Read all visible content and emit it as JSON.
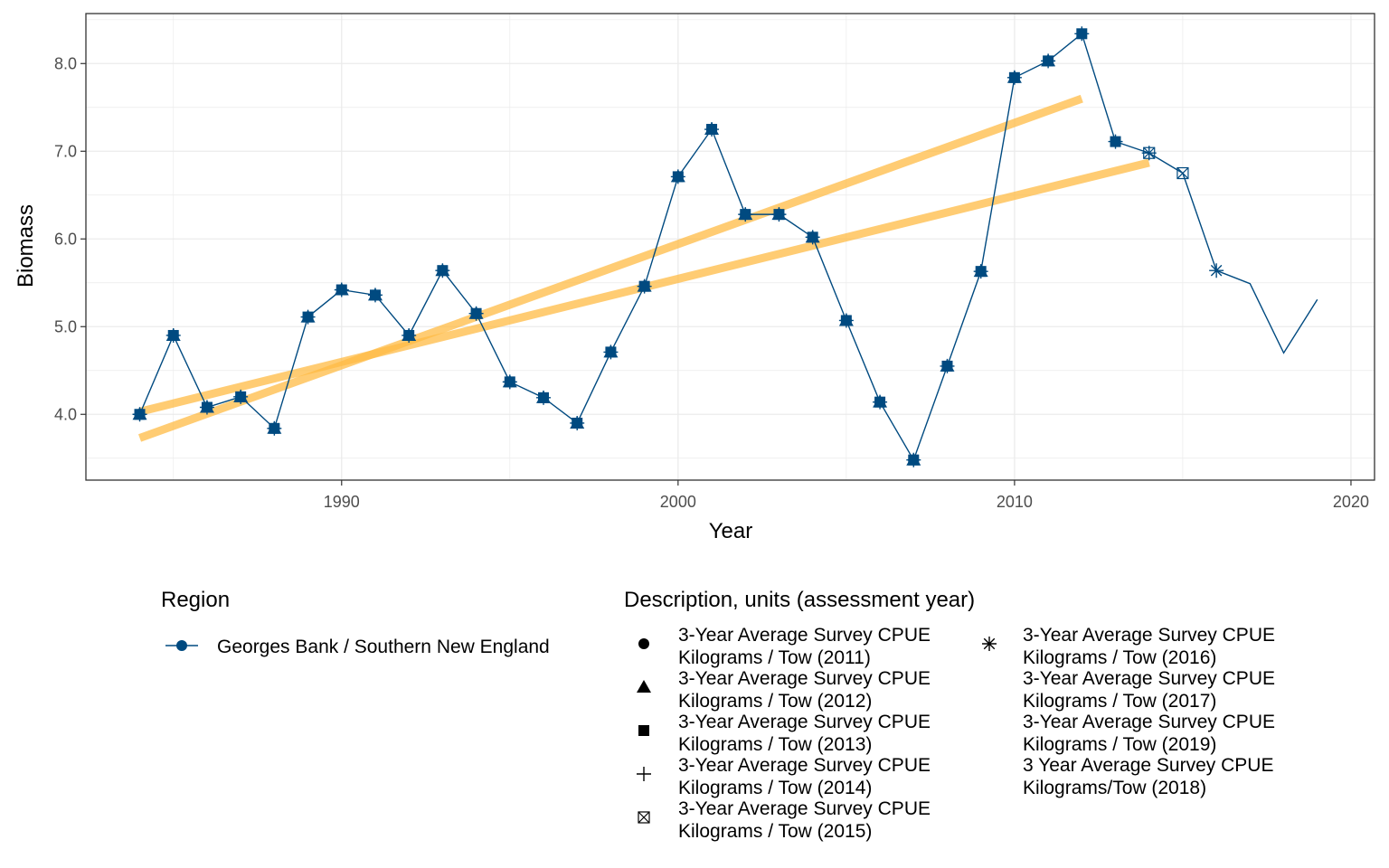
{
  "chart_data": {
    "type": "line",
    "xlabel": "Year",
    "ylabel": "Biomass",
    "xlim": [
      1982.4,
      2020.7
    ],
    "ylim": [
      3.25,
      8.57
    ],
    "x_ticks": [
      1990,
      2000,
      2010,
      2020
    ],
    "x_tick_labels": [
      "1990",
      "2000",
      "2010",
      "2020"
    ],
    "y_ticks": [
      4,
      5,
      6,
      7,
      8
    ],
    "y_tick_labels": [
      "4.0",
      "5.0",
      "6.0",
      "7.0",
      "8.0"
    ],
    "grid": true,
    "legend_placement": "bottom",
    "series": [
      {
        "name": "Georges Bank / Southern New England",
        "color": "#004a80",
        "x": [
          1984,
          1985,
          1986,
          1987,
          1988,
          1989,
          1990,
          1991,
          1992,
          1993,
          1994,
          1995,
          1996,
          1997,
          1998,
          1999,
          2000,
          2001,
          2002,
          2003,
          2004,
          2005,
          2006,
          2007,
          2008,
          2009,
          2010,
          2011,
          2012,
          2013,
          2014,
          2015,
          2016,
          2017,
          2018,
          2019
        ],
        "y": [
          4.0,
          4.9,
          4.08,
          4.2,
          3.84,
          5.11,
          5.42,
          5.36,
          4.9,
          5.64,
          5.15,
          4.37,
          4.19,
          3.9,
          4.71,
          5.46,
          6.71,
          7.25,
          6.28,
          6.28,
          6.02,
          5.07,
          4.14,
          3.48,
          4.55,
          5.63,
          7.84,
          8.03,
          8.34,
          7.11,
          6.98,
          6.75,
          5.64,
          5.49,
          4.7,
          5.31
        ]
      }
    ],
    "trend_lines": [
      {
        "color": "#ffbb44",
        "x": [
          1984,
          2012
        ],
        "y": [
          3.73,
          7.6
        ]
      },
      {
        "color": "#ffbb44",
        "x": [
          1984,
          2014
        ],
        "y": [
          4.03,
          6.87
        ]
      }
    ],
    "assessment_markers": [
      {
        "shape": "circle",
        "x": [
          1984,
          1985,
          1986,
          1987,
          1988,
          1989,
          1990,
          1991,
          1992,
          1993,
          1994,
          1995,
          1996,
          1997,
          1998,
          1999,
          2000,
          2001,
          2002,
          2003,
          2004,
          2005,
          2006,
          2007,
          2008,
          2009,
          2010
        ],
        "y": [
          4.0,
          4.9,
          4.08,
          4.2,
          3.84,
          5.11,
          5.42,
          5.36,
          4.9,
          5.64,
          5.15,
          4.37,
          4.19,
          3.9,
          4.71,
          5.46,
          6.71,
          7.25,
          6.28,
          6.28,
          6.02,
          5.07,
          4.14,
          3.48,
          4.55,
          5.63,
          7.84
        ]
      },
      {
        "shape": "triangle",
        "x": [
          1984,
          1985,
          1986,
          1987,
          1988,
          1989,
          1990,
          1991,
          1992,
          1993,
          1994,
          1995,
          1996,
          1997,
          1998,
          1999,
          2000,
          2001,
          2002,
          2003,
          2004,
          2005,
          2006,
          2007,
          2008,
          2009,
          2010,
          2011
        ],
        "y": [
          4.0,
          4.9,
          4.08,
          4.2,
          3.84,
          5.11,
          5.42,
          5.36,
          4.9,
          5.64,
          5.15,
          4.37,
          4.19,
          3.9,
          4.71,
          5.46,
          6.71,
          7.25,
          6.28,
          6.28,
          6.02,
          5.07,
          4.14,
          3.48,
          4.55,
          5.63,
          7.84,
          8.03
        ]
      },
      {
        "shape": "square",
        "x": [
          1984,
          1985,
          1986,
          1987,
          1988,
          1989,
          1990,
          1991,
          1992,
          1993,
          1994,
          1995,
          1996,
          1997,
          1998,
          1999,
          2000,
          2001,
          2002,
          2003,
          2004,
          2005,
          2006,
          2007,
          2008,
          2009,
          2010,
          2011,
          2012,
          2013
        ],
        "y": [
          4.0,
          4.9,
          4.08,
          4.2,
          3.84,
          5.11,
          5.42,
          5.36,
          4.9,
          5.64,
          5.15,
          4.37,
          4.19,
          3.9,
          4.71,
          5.46,
          6.71,
          7.25,
          6.28,
          6.28,
          6.02,
          5.07,
          4.14,
          3.48,
          4.55,
          5.63,
          7.84,
          8.03,
          8.34,
          7.11
        ]
      },
      {
        "shape": "plus",
        "x": [
          1984,
          1985,
          1986,
          1987,
          1988,
          1989,
          1990,
          1991,
          1992,
          1993,
          1994,
          1995,
          1996,
          1997,
          1998,
          1999,
          2000,
          2001,
          2002,
          2003,
          2004,
          2005,
          2006,
          2007,
          2008,
          2009,
          2010,
          2011,
          2012,
          2013,
          2014
        ],
        "y": [
          4.0,
          4.9,
          4.08,
          4.2,
          3.84,
          5.11,
          5.42,
          5.36,
          4.9,
          5.64,
          5.15,
          4.37,
          4.19,
          3.9,
          4.71,
          5.46,
          6.71,
          7.25,
          6.28,
          6.28,
          6.02,
          5.07,
          4.14,
          3.48,
          4.55,
          5.63,
          7.84,
          8.03,
          8.34,
          7.11,
          6.98
        ]
      },
      {
        "shape": "boxx",
        "x": [
          2014,
          2015
        ],
        "y": [
          6.98,
          6.75
        ]
      },
      {
        "shape": "asterisk",
        "x": [
          2016
        ],
        "y": [
          5.64
        ]
      }
    ]
  },
  "legend_region": {
    "title": "Region",
    "items": [
      {
        "label": "Georges Bank / Southern New England",
        "color": "#004a80"
      }
    ]
  },
  "legend_description": {
    "title": "Description, units (assessment year)",
    "items": [
      {
        "shape": "circle",
        "line1": "3-Year Average Survey CPUE",
        "line2": "Kilograms / Tow (2011)"
      },
      {
        "shape": "triangle",
        "line1": "3-Year Average Survey CPUE",
        "line2": "Kilograms / Tow (2012)"
      },
      {
        "shape": "square",
        "line1": "3-Year Average Survey CPUE",
        "line2": "Kilograms / Tow (2013)"
      },
      {
        "shape": "plus",
        "line1": "3-Year Average Survey CPUE",
        "line2": "Kilograms / Tow (2014)"
      },
      {
        "shape": "boxx",
        "line1": "3-Year Average Survey CPUE",
        "line2": "Kilograms / Tow (2015)"
      },
      {
        "shape": "asterisk",
        "line1": "3-Year Average Survey CPUE",
        "line2": "Kilograms / Tow (2016)"
      },
      {
        "shape": "none",
        "line1": "3-Year Average Survey CPUE",
        "line2": "Kilograms / Tow (2017)"
      },
      {
        "shape": "none",
        "line1": "3-Year Average Survey CPUE",
        "line2": "Kilograms / Tow (2019)"
      },
      {
        "shape": "none",
        "line1": "3 Year Average Survey CPUE",
        "line2": "Kilograms/Tow (2018)"
      }
    ]
  }
}
